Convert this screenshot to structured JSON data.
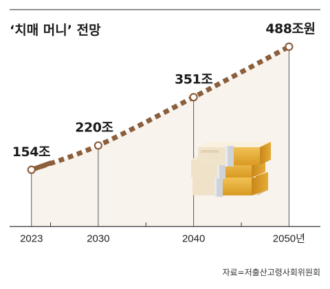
{
  "chart_data": {
    "type": "line",
    "title": "‘치매 머니’ 전망",
    "x": [
      2023,
      2030,
      2040,
      2050
    ],
    "values": [
      154,
      220,
      351,
      488
    ],
    "value_labels": [
      "154조",
      "220조",
      "351조",
      "488조원"
    ],
    "tick_labels": [
      "2023",
      "2030",
      "2040",
      "2050년"
    ],
    "xlim": [
      2021,
      2053
    ],
    "ylim": [
      -20,
      540
    ],
    "source": "자료=저출산고령사회위원회",
    "colors": {
      "line": "#8b5e3c",
      "marker_fill": "#ffffff",
      "area": "#f8f3ec",
      "axis": "#333333",
      "text": "#1a1a1a"
    },
    "grid": false,
    "legend": "none",
    "decoration": "stacked-money-bundles-icon"
  }
}
